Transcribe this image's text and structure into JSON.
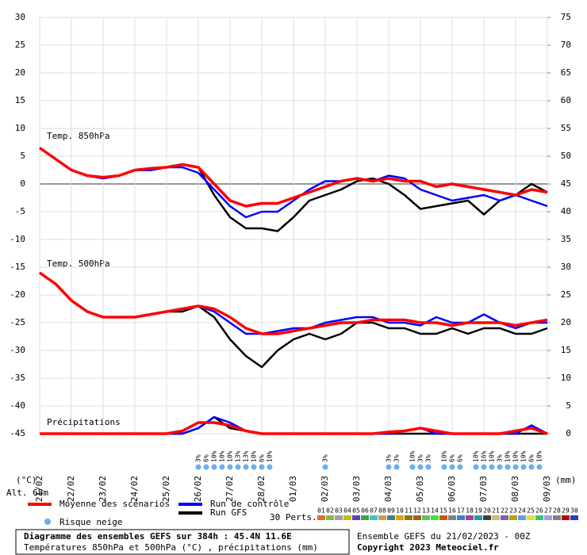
{
  "chart_data": {
    "type": "line",
    "title": "Diagramme des ensembles GEFS sur 384h : 45.4N 11.6E",
    "subtitle": "Températures 850hPa et 500hPa (°C) , précipitations (mm)",
    "run_label": "Ensemble GEFS du 21/02/2023 - 00Z",
    "copyright": "Copyright 2023 Meteociel.fr",
    "ylabel": "(°C)",
    "y2label": "(mm)",
    "altitude": "Alt. 68m",
    "panel_labels": [
      "Temp. 850hPa",
      "Temp. 500hPa",
      "Précipitations"
    ],
    "grid": true,
    "x": [
      0,
      12,
      24,
      36,
      48,
      60,
      72,
      84,
      96,
      108,
      120,
      132,
      144,
      156,
      168,
      180,
      192,
      204,
      216,
      228,
      240,
      252,
      264,
      276,
      288,
      300,
      312,
      324,
      336,
      348,
      360,
      372,
      384
    ],
    "xlim": [
      0,
      384
    ],
    "xticks": [
      {
        "value": 0,
        "label": "21/02"
      },
      {
        "value": 24,
        "label": "22/02"
      },
      {
        "value": 48,
        "label": "23/02"
      },
      {
        "value": 72,
        "label": "24/02"
      },
      {
        "value": 96,
        "label": "25/02"
      },
      {
        "value": 120,
        "label": "26/02"
      },
      {
        "value": 144,
        "label": "27/02"
      },
      {
        "value": 168,
        "label": "28/02"
      },
      {
        "value": 192,
        "label": "01/03"
      },
      {
        "value": 216,
        "label": "02/03"
      },
      {
        "value": 240,
        "label": "03/03"
      },
      {
        "value": 264,
        "label": "04/03"
      },
      {
        "value": 288,
        "label": "05/03"
      },
      {
        "value": 312,
        "label": "06/03"
      },
      {
        "value": 336,
        "label": "07/03"
      },
      {
        "value": 360,
        "label": "08/03"
      },
      {
        "value": 384,
        "label": "09/03"
      }
    ],
    "ylim": [
      -45,
      30
    ],
    "yticks": [
      -45,
      -40,
      -35,
      -30,
      -25,
      -20,
      -15,
      -10,
      -5,
      0,
      5,
      10,
      15,
      20,
      25,
      30
    ],
    "y2lim": [
      0,
      75
    ],
    "y2ticks": [
      0,
      5,
      10,
      15,
      20,
      25,
      30,
      35,
      40,
      45,
      50,
      55,
      60,
      65,
      70,
      75
    ],
    "series": [
      {
        "name": "Moyenne des scénarios",
        "color": "#ff0000",
        "temp_850": [
          6.5,
          4.5,
          2.5,
          1.5,
          1.2,
          1.5,
          2.5,
          2.8,
          3,
          3.5,
          3,
          0,
          -3,
          -4,
          -3.5,
          -3.5,
          -2.5,
          -1.5,
          -0.5,
          0.5,
          1,
          0.5,
          1,
          0.5,
          0.5,
          -0.5,
          0,
          -0.5,
          -1,
          -1.5,
          -2,
          -1,
          -1.5
        ],
        "temp_500": [
          -16,
          -18,
          -21,
          -23,
          -24,
          -24,
          -24,
          -23.5,
          -23,
          -22.5,
          -22,
          -22.5,
          -24,
          -26,
          -27,
          -27,
          -26.5,
          -26,
          -25.5,
          -25,
          -25,
          -24.5,
          -24.5,
          -24.5,
          -25,
          -25,
          -25.5,
          -25,
          -25,
          -25,
          -25.5,
          -25,
          -24.5
        ],
        "precip": [
          0,
          0,
          0,
          0,
          0,
          0,
          0,
          0,
          0,
          0.5,
          2,
          2,
          1.5,
          0.5,
          0,
          0,
          0,
          0,
          0,
          0,
          0,
          0,
          0.3,
          0.5,
          1,
          0.5,
          0,
          0,
          0,
          0,
          0.5,
          1,
          0
        ]
      },
      {
        "name": "Run de contrôle",
        "color": "#0000ff",
        "temp_850": [
          6.5,
          4.5,
          2.5,
          1.5,
          1,
          1.5,
          2.5,
          2.5,
          3,
          3,
          2,
          -1,
          -4,
          -6,
          -5,
          -5,
          -3,
          -1,
          0.5,
          0.5,
          1,
          0.5,
          1.5,
          1,
          -1,
          -2,
          -3,
          -2.5,
          -2,
          -3,
          -2,
          -3,
          -4
        ],
        "temp_500": [
          -16,
          -18,
          -21,
          -23,
          -24,
          -24,
          -24,
          -23.5,
          -23,
          -22.5,
          -22,
          -23,
          -25,
          -27,
          -27,
          -26.5,
          -26,
          -26,
          -25,
          -24.5,
          -24,
          -24,
          -25,
          -25,
          -25.5,
          -24,
          -25,
          -25,
          -23.5,
          -25,
          -26,
          -25,
          -25
        ],
        "precip": [
          0,
          0,
          0,
          0,
          0,
          0,
          0,
          0,
          0,
          0,
          1,
          3,
          2,
          0.5,
          0,
          0,
          0,
          0,
          0,
          0,
          0,
          0,
          0,
          0.5,
          1,
          0,
          0,
          0,
          0,
          0,
          0,
          1.5,
          0
        ]
      },
      {
        "name": "Run GFS",
        "color": "#000000",
        "temp_850": [
          6.5,
          4.5,
          2.5,
          1.5,
          1,
          1.5,
          2.5,
          2.5,
          3,
          3.5,
          3,
          -2,
          -6,
          -8,
          -8,
          -8.5,
          -6,
          -3,
          -2,
          -1,
          0.5,
          1,
          0,
          -2,
          -4.5,
          -4,
          -3.5,
          -3,
          -5.5,
          -3,
          -2,
          0,
          -1.5
        ],
        "temp_500": [
          -16,
          -18,
          -21,
          -23,
          -24,
          -24,
          -24,
          -23.5,
          -23,
          -23,
          -22,
          -24,
          -28,
          -31,
          -33,
          -30,
          -28,
          -27,
          -28,
          -27,
          -25,
          -25,
          -26,
          -26,
          -27,
          -27,
          -26,
          -27,
          -26,
          -26,
          -27,
          -27,
          -26
        ],
        "precip": [
          0,
          0,
          0,
          0,
          0,
          0,
          0,
          0,
          0,
          0,
          1,
          3,
          1,
          0.5,
          0,
          0,
          0,
          0,
          0,
          0,
          0,
          0,
          0,
          0,
          0,
          0,
          0,
          0,
          0,
          0,
          0,
          0,
          0
        ]
      }
    ],
    "snow_risk": {
      "name": "Risque neige",
      "x": [
        120,
        126,
        132,
        138,
        144,
        150,
        156,
        162,
        168,
        174,
        216,
        264,
        270,
        282,
        288,
        294,
        306,
        312,
        318,
        330,
        336,
        342,
        348,
        354,
        360,
        366,
        372,
        378
      ],
      "values": [
        3,
        6,
        10,
        10,
        10,
        13,
        13,
        10,
        6,
        10,
        3,
        3,
        3,
        10,
        3,
        3,
        10,
        6,
        6,
        10,
        16,
        10,
        3,
        10,
        10,
        10,
        6,
        10
      ],
      "value_labels": [
        "3%",
        "6%",
        "10%",
        "10%",
        "10%",
        "13%",
        "13%",
        "10%",
        "6%",
        "10%",
        "3%",
        "3%",
        "3%",
        "10%",
        "3%",
        "3%",
        "10%",
        "6%",
        "6%",
        "10%",
        "16%",
        "10%",
        "3%",
        "10%",
        "10%",
        "10%",
        "6%",
        "10%"
      ]
    },
    "perturbations": {
      "name": "30 Perts.",
      "members": [
        {
          "name": "01",
          "color": "#e07030"
        },
        {
          "name": "02",
          "color": "#80c040"
        },
        {
          "name": "03",
          "color": "#a0a0a0"
        },
        {
          "name": "04",
          "color": "#c0c000"
        },
        {
          "name": "05",
          "color": "#6040c0"
        },
        {
          "name": "06",
          "color": "#40a040"
        },
        {
          "name": "07",
          "color": "#40c0c0"
        },
        {
          "name": "08",
          "color": "#c0a060"
        },
        {
          "name": "09",
          "color": "#408080"
        },
        {
          "name": "10",
          "color": "#e0a000"
        },
        {
          "name": "11",
          "color": "#808000"
        },
        {
          "name": "12",
          "color": "#a06020"
        },
        {
          "name": "13",
          "color": "#60c060"
        },
        {
          "name": "14",
          "color": "#40e040"
        },
        {
          "name": "15",
          "color": "#c06000"
        },
        {
          "name": "16",
          "color": "#808080"
        },
        {
          "name": "17",
          "color": "#4080c0"
        },
        {
          "name": "18",
          "color": "#a040a0"
        },
        {
          "name": "19",
          "color": "#20a0a0"
        },
        {
          "name": "20",
          "color": "#404040"
        },
        {
          "name": "21",
          "color": "#c0c080"
        },
        {
          "name": "22",
          "color": "#8060a0"
        },
        {
          "name": "23",
          "color": "#c0a000"
        },
        {
          "name": "24",
          "color": "#60a0e0"
        },
        {
          "name": "25",
          "color": "#e0e040"
        },
        {
          "name": "26",
          "color": "#40c080"
        },
        {
          "name": "27",
          "color": "#a0a0e0"
        },
        {
          "name": "28",
          "color": "#808080"
        },
        {
          "name": "29",
          "color": "#c00000"
        },
        {
          "name": "30",
          "color": "#2040c0"
        }
      ]
    }
  }
}
